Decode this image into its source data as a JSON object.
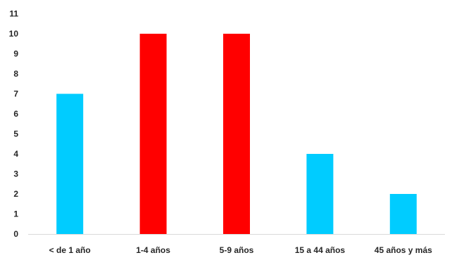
{
  "chart_data": {
    "type": "bar",
    "title": "",
    "xlabel": "",
    "ylabel": "",
    "categories": [
      "< de 1 año",
      "1-4 años",
      "5-9 años",
      "15 a 44 años",
      "45 años y más"
    ],
    "values": [
      7,
      10,
      10,
      4,
      2
    ],
    "bar_colors": [
      "#00CCFF",
      "#FF0000",
      "#FF0000",
      "#00CCFF",
      "#00CCFF"
    ],
    "ylim": [
      0,
      11
    ],
    "yticks": [
      "0",
      "1",
      "2",
      "3",
      "4",
      "5",
      "6",
      "7",
      "8",
      "9",
      "10",
      "11"
    ],
    "grid": false,
    "legend": "none"
  }
}
